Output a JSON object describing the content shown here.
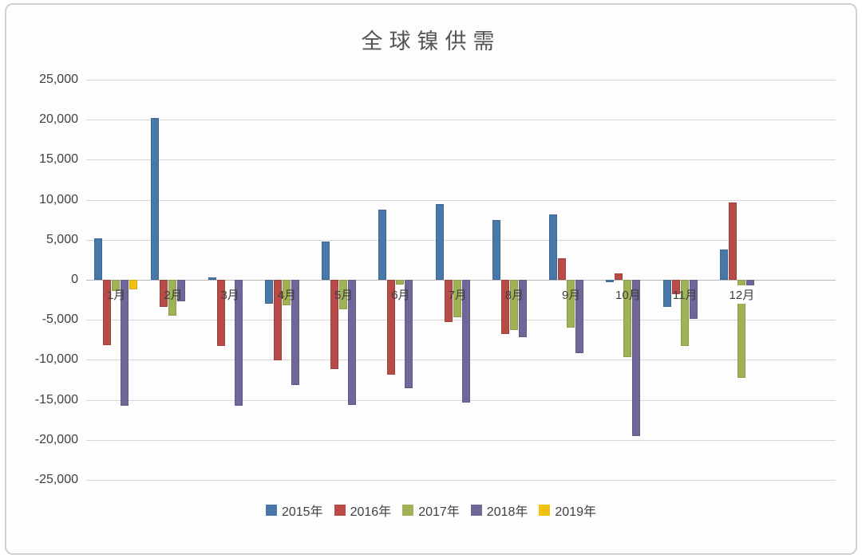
{
  "window": {
    "title": "全球镍供需"
  },
  "chart_data": {
    "type": "bar",
    "title": "全球镍供需",
    "xlabel": "",
    "ylabel": "",
    "categories": [
      "1月",
      "2月",
      "3月",
      "4月",
      "5月",
      "6月",
      "7月",
      "8月",
      "9月",
      "10月",
      "11月",
      "12月"
    ],
    "series": [
      {
        "name": "2015年",
        "color": "#4878A8",
        "values": [
          5200,
          20200,
          300,
          -3000,
          4800,
          8800,
          9500,
          7500,
          8200,
          -300,
          -3400,
          3800
        ]
      },
      {
        "name": "2016年",
        "color": "#B84B47",
        "values": [
          -8200,
          -3400,
          -8300,
          -10100,
          -11200,
          -11900,
          -5300,
          -6800,
          2700,
          800,
          -1800,
          9700
        ]
      },
      {
        "name": "2017年",
        "color": "#9FB255",
        "values": [
          -1400,
          -4500,
          null,
          -3200,
          -3700,
          -600,
          -4700,
          -6300,
          -6000,
          -9700,
          -8300,
          -12300
        ]
      },
      {
        "name": "2018年",
        "color": "#71669A",
        "values": [
          -15700,
          -2700,
          -15700,
          -13100,
          -15600,
          -13500,
          -15300,
          -7200,
          -9200,
          -19500,
          -4900,
          -700
        ]
      },
      {
        "name": "2019年",
        "color": "#F2C00E",
        "values": [
          -1200,
          null,
          null,
          null,
          null,
          null,
          null,
          null,
          null,
          null,
          null,
          null
        ]
      }
    ],
    "ylim": [
      -25000,
      25000
    ],
    "ytick_step": 5000,
    "ytick_labels": [
      "25,000",
      "20,000",
      "15,000",
      "10,000",
      "5,000",
      "0",
      "-5,000",
      "-10,000",
      "-15,000",
      "-20,000",
      "-25,000"
    ],
    "grid": true,
    "legend_position": "bottom"
  },
  "layout_colors": {
    "gridline": "#d6d6d6",
    "title_text": "#555555",
    "tick_text": "#3f3f3f",
    "frame_border": "#cfcfcf"
  }
}
